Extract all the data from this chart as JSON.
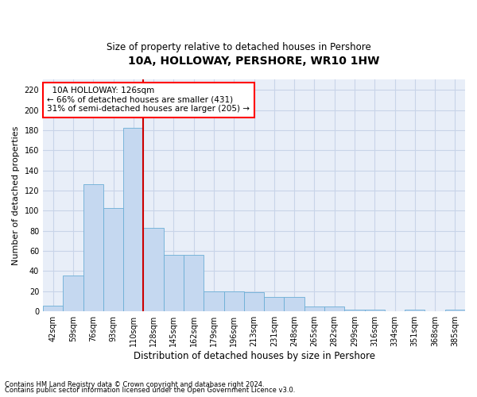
{
  "title": "10A, HOLLOWAY, PERSHORE, WR10 1HW",
  "subtitle": "Size of property relative to detached houses in Pershore",
  "xlabel": "Distribution of detached houses by size in Pershore",
  "ylabel": "Number of detached properties",
  "footnote1": "Contains HM Land Registry data © Crown copyright and database right 2024.",
  "footnote2": "Contains public sector information licensed under the Open Government Licence v3.0.",
  "annotation_line1": "10A HOLLOWAY: 126sqm",
  "annotation_line2": "← 66% of detached houses are smaller (431)",
  "annotation_line3": "31% of semi-detached houses are larger (205) →",
  "bar_color": "#c5d8f0",
  "bar_edge_color": "#6baed6",
  "red_line_color": "#cc0000",
  "categories": [
    "42sqm",
    "59sqm",
    "76sqm",
    "93sqm",
    "110sqm",
    "128sqm",
    "145sqm",
    "162sqm",
    "179sqm",
    "196sqm",
    "213sqm",
    "231sqm",
    "248sqm",
    "265sqm",
    "282sqm",
    "299sqm",
    "316sqm",
    "334sqm",
    "351sqm",
    "368sqm",
    "385sqm"
  ],
  "values": [
    6,
    36,
    126,
    103,
    182,
    83,
    56,
    56,
    20,
    20,
    19,
    14,
    14,
    5,
    5,
    2,
    2,
    0,
    2,
    0,
    2
  ],
  "ylim": [
    0,
    230
  ],
  "yticks": [
    0,
    20,
    40,
    60,
    80,
    100,
    120,
    140,
    160,
    180,
    200,
    220
  ],
  "grid_color": "#c8d4e8",
  "bg_color": "#e8eef8",
  "title_fontsize": 10,
  "subtitle_fontsize": 8.5,
  "ylabel_fontsize": 8,
  "xlabel_fontsize": 8.5,
  "tick_fontsize": 7,
  "annotation_fontsize": 7.5,
  "footnote_fontsize": 6
}
